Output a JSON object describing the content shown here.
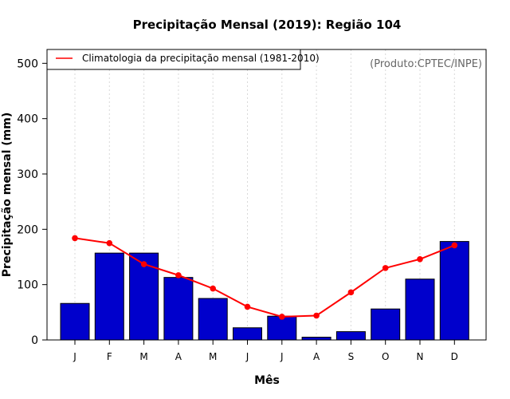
{
  "chart_data": {
    "type": "bar",
    "title": "Precipitação Mensal (2019): Região 104",
    "xlabel": "Mês",
    "ylabel": "Precipitação mensal (mm)",
    "ylim": [
      0,
      525
    ],
    "yticks": [
      0,
      100,
      200,
      300,
      400,
      500
    ],
    "categories": [
      "J",
      "F",
      "M",
      "A",
      "M",
      "J",
      "J",
      "A",
      "S",
      "O",
      "N",
      "D"
    ],
    "series": [
      {
        "name": "Precipitação mensal 2019",
        "type": "bar",
        "color": "#0000cc",
        "values": [
          66,
          157,
          157,
          113,
          75,
          22,
          43,
          5,
          15,
          56,
          110,
          178
        ]
      },
      {
        "name": "Climatologia da precipitação mensal (1981-2010)",
        "type": "line",
        "color": "#ff0000",
        "values": [
          184,
          175,
          137,
          117,
          93,
          60,
          42,
          44,
          86,
          130,
          146,
          171
        ]
      }
    ],
    "legend": {
      "placement": "top-left",
      "label": "Climatologia da precipitação mensal (1981-2010)"
    },
    "annotation": "(Produto:CPTEC/INPE)",
    "grid": "vertical dotted"
  }
}
